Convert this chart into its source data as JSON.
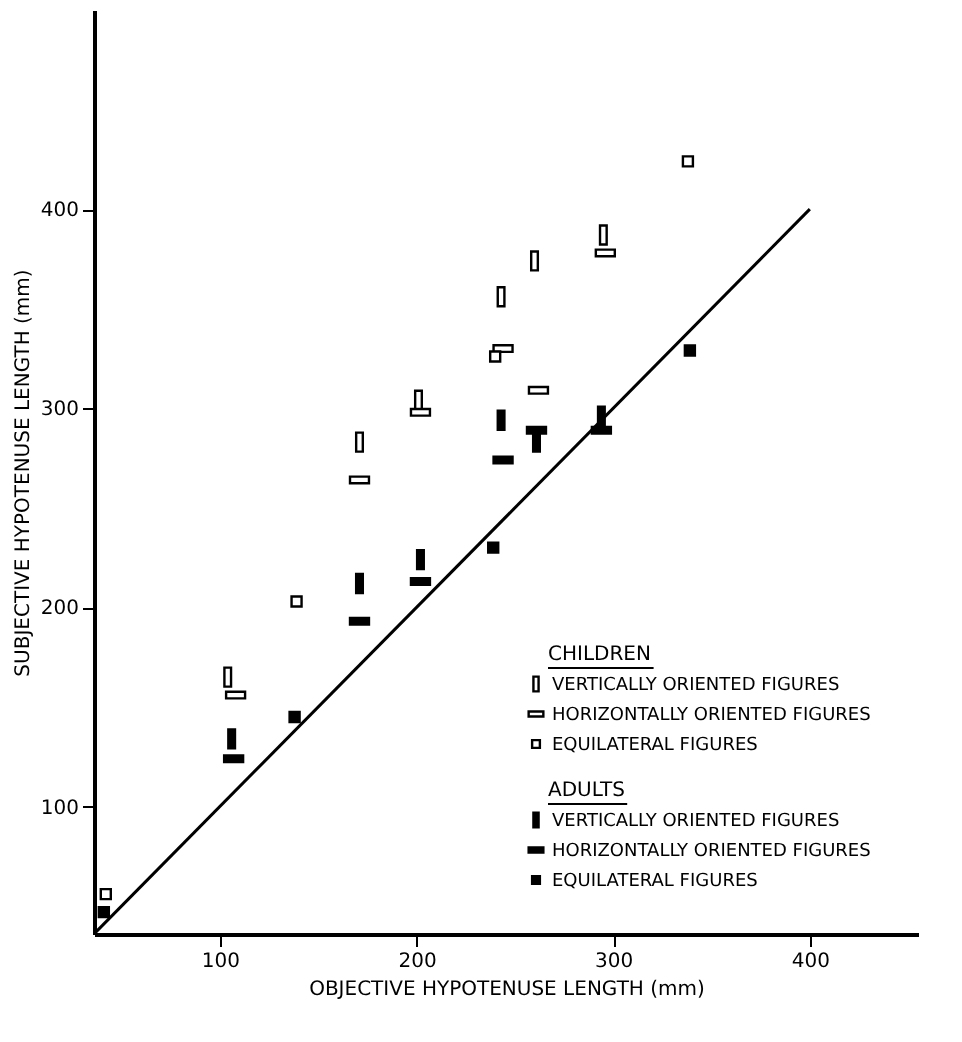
{
  "chart_data": {
    "type": "scatter",
    "xlabel": "OBJECTIVE HYPOTENUSE LENGTH (mm)",
    "ylabel": "SUBJECTIVE HYPOTENUSE LENGTH (mm)",
    "xlim": [
      36,
      455
    ],
    "ylim": [
      36,
      500
    ],
    "xticks": [
      100,
      200,
      300,
      400
    ],
    "yticks": [
      100,
      200,
      300,
      400
    ],
    "grid": false,
    "legend": "bottom right",
    "marker": "square",
    "annotations": [
      "CHILDREN",
      "ADULTS"
    ],
    "series": [
      {
        "name": "VERTICALLY ORIENTED FIGURES",
        "color": "#ffffff",
        "x": [
          104,
          171,
          201,
          243,
          260,
          295
        ],
        "values": [
          165,
          283,
          304,
          356,
          374,
          387
        ]
      },
      {
        "name": "HORIZONTALLY ORIENTED FIGURES",
        "color": "#ffffff",
        "x": [
          108,
          171,
          202,
          244,
          262,
          296
        ],
        "values": [
          156,
          264,
          298,
          330,
          309,
          378
        ]
      },
      {
        "name": "EQUILATERAL FIGURES",
        "color": "#ffffff",
        "x": [
          42,
          139,
          240,
          338
        ],
        "values": [
          56,
          203,
          326,
          424
        ]
      },
      {
        "name": "VERTICALLY ORIENTED FIGURES",
        "color": "#000000",
        "x": [
          106,
          171,
          202,
          243,
          261,
          294
        ],
        "values": [
          134,
          212,
          224,
          294,
          283,
          296
        ]
      },
      {
        "name": "HORIZONTALLY ORIENTED FIGURES",
        "color": "#000000",
        "x": [
          107,
          171,
          202,
          244,
          261,
          294
        ],
        "values": [
          124,
          193,
          213,
          274,
          289,
          289
        ]
      },
      {
        "name": "EQUILATERAL FIGURES",
        "color": "#000000",
        "x": [
          41,
          138,
          239,
          339
        ],
        "values": [
          47,
          145,
          230,
          329
        ]
      },
      {
        "type": "line",
        "marker": "none",
        "color": "#000000",
        "x": [
          36,
          400
        ],
        "values": [
          36,
          400
        ]
      }
    ]
  }
}
